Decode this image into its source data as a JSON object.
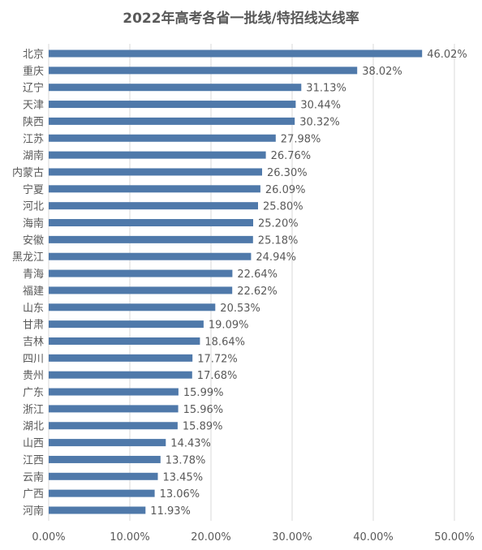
{
  "chart_data": {
    "type": "bar",
    "orientation": "horizontal",
    "title": "2022年高考各省一批线/特招线达线率",
    "categories": [
      "北京",
      "重庆",
      "辽宁",
      "天津",
      "陕西",
      "江苏",
      "湖南",
      "内蒙古",
      "宁夏",
      "河北",
      "海南",
      "安徽",
      "黑龙江",
      "青海",
      "福建",
      "山东",
      "甘肃",
      "吉林",
      "四川",
      "贵州",
      "广东",
      "浙江",
      "湖北",
      "山西",
      "江西",
      "云南",
      "广西",
      "河南"
    ],
    "values": [
      46.02,
      38.02,
      31.13,
      30.44,
      30.32,
      27.98,
      26.76,
      26.3,
      26.09,
      25.8,
      25.2,
      25.18,
      24.94,
      22.64,
      22.62,
      20.53,
      19.09,
      18.64,
      17.72,
      17.68,
      15.99,
      15.96,
      15.89,
      14.43,
      13.78,
      13.45,
      13.06,
      11.93
    ],
    "value_labels": [
      "46.02%",
      "38.02%",
      "31.13%",
      "30.44%",
      "30.32%",
      "27.98%",
      "26.76%",
      "26.30%",
      "26.09%",
      "25.80%",
      "25.20%",
      "25.18%",
      "24.94%",
      "22.64%",
      "22.62%",
      "20.53%",
      "19.09%",
      "18.64%",
      "17.72%",
      "17.68%",
      "15.99%",
      "15.96%",
      "15.89%",
      "14.43%",
      "13.78%",
      "13.45%",
      "13.06%",
      "11.93%"
    ],
    "xlim": [
      0,
      50
    ],
    "x_ticks": [
      0,
      10,
      20,
      30,
      40,
      50
    ],
    "x_tick_labels": [
      "0.00%",
      "10.00%",
      "20.00%",
      "30.00%",
      "40.00%",
      "50.00%"
    ],
    "xlabel": "",
    "ylabel": "",
    "grid": "vertical",
    "legend": "none",
    "bar_color": "#4f79aa",
    "grid_color": "#d9d9d9",
    "text_color": "#595959"
  }
}
